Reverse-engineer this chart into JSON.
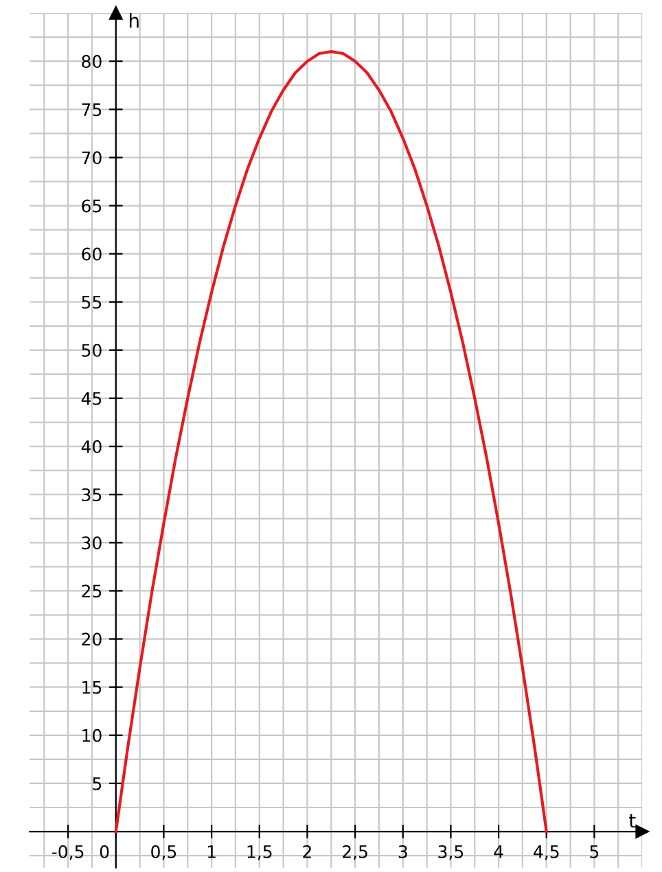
{
  "chart_data": {
    "type": "line",
    "xlabel": "t",
    "ylabel": "h",
    "x": [
      0,
      0.125,
      0.25,
      0.375,
      0.5,
      0.625,
      0.75,
      0.875,
      1,
      1.125,
      1.25,
      1.375,
      1.5,
      1.625,
      1.75,
      1.875,
      2,
      2.125,
      2.25,
      2.375,
      2.5,
      2.625,
      2.75,
      2.875,
      3,
      3.125,
      3.25,
      3.375,
      3.5,
      3.625,
      3.75,
      3.875,
      4,
      4.125,
      4.25,
      4.375,
      4.5
    ],
    "series": [
      {
        "color": "#e8191f",
        "values": [
          0,
          8.8,
          17,
          24.8,
          32,
          38.8,
          45,
          50.8,
          56,
          60.8,
          65,
          68.8,
          72,
          74.8,
          77,
          78.8,
          80,
          80.8,
          81,
          80.8,
          80,
          78.8,
          77,
          74.8,
          72,
          68.8,
          65,
          60.8,
          56,
          50.8,
          45,
          38.8,
          32,
          24.8,
          17,
          8.8,
          0
        ]
      }
    ],
    "xlim": [
      -0.9,
      5.5
    ],
    "ylim": [
      -3.75,
      85
    ],
    "xticks": [
      {
        "value": -0.5,
        "label": "-0,5"
      },
      0,
      {
        "value": 0.5,
        "label": "0,5"
      },
      1,
      {
        "value": 1.5,
        "label": "1,5"
      },
      2,
      {
        "value": 2.5,
        "label": "2,5"
      },
      3,
      {
        "value": 3.5,
        "label": "3,5"
      },
      4,
      {
        "value": 4.5,
        "label": "4,5"
      },
      5
    ],
    "yticks": [
      5,
      10,
      15,
      20,
      25,
      30,
      35,
      40,
      45,
      50,
      55,
      60,
      65,
      70,
      75,
      80
    ],
    "grid": true,
    "line_style": "solid",
    "marker": "none"
  }
}
